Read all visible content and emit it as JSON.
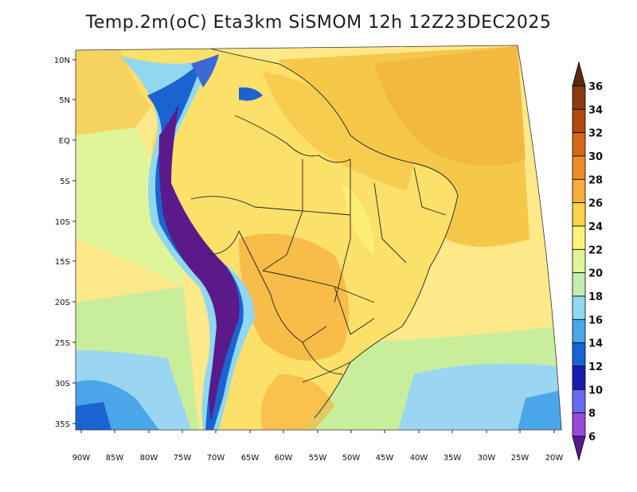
{
  "title": "Temp.2m(oC) Eta3km SiSMOM 12h 12Z23DEC2025",
  "lat_labels": [
    "10N",
    "5N",
    "EQ",
    "5S",
    "10S",
    "15S",
    "20S",
    "25S",
    "30S",
    "35S"
  ],
  "lon_labels": [
    "90W",
    "85W",
    "80W",
    "75W",
    "70W",
    "65W",
    "60W",
    "55W",
    "50W",
    "45W",
    "40W",
    "35W",
    "30W",
    "25W",
    "20W"
  ],
  "colorbar": {
    "labels": [
      "36",
      "34",
      "32",
      "30",
      "28",
      "26",
      "24",
      "22",
      "20",
      "18",
      "16",
      "14",
      "12",
      "10",
      "8",
      "6"
    ],
    "colors": [
      "#5a2c0c",
      "#8c3a10",
      "#b24a12",
      "#d66a18",
      "#f08a28",
      "#f6ad3a",
      "#f9d247",
      "#fdf27a",
      "#e0f59a",
      "#c2efb0",
      "#90d8f0",
      "#4aa6e8",
      "#1a64d2",
      "#1a1ab0",
      "#6a6af0",
      "#9a4ad8",
      "#5a1a8a"
    ]
  },
  "regions": {
    "ocean_warm": "#f6c84a",
    "ocean_mild": "#fde88a",
    "ocean_cool": "#c8ee9c",
    "ocean_cold": "#9ad6f2",
    "land": "#fbe06a",
    "andes_high": "#6a2a9a",
    "andes_mid": "#3a6ad6"
  }
}
